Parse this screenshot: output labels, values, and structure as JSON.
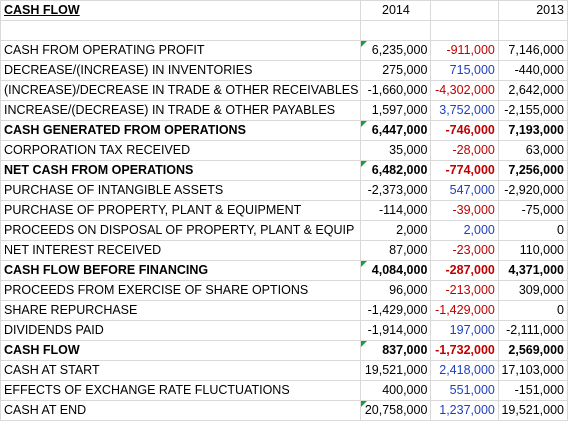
{
  "header": {
    "title": "CASH FLOW",
    "year_a": "2014",
    "year_b": "2013"
  },
  "rows": [
    {
      "label": "CASH FROM OPERATING PROFIT",
      "v2014": "6,235,000",
      "diff": "-911,000",
      "v2013": "7,146,000",
      "bold": false,
      "diff_type": "neg",
      "flag": true
    },
    {
      "label": "DECREASE/(INCREASE) IN INVENTORIES",
      "v2014": "275,000",
      "diff": "715,000",
      "v2013": "-440,000",
      "bold": false,
      "diff_type": "pos",
      "flag": false
    },
    {
      "label": "(INCREASE)/DECREASE IN TRADE & OTHER RECEIVABLES",
      "v2014": "-1,660,000",
      "diff": "-4,302,000",
      "v2013": "2,642,000",
      "bold": false,
      "diff_type": "neg",
      "flag": false
    },
    {
      "label": "INCREASE/(DECREASE) IN TRADE & OTHER PAYABLES",
      "v2014": "1,597,000",
      "diff": "3,752,000",
      "v2013": "-2,155,000",
      "bold": false,
      "diff_type": "pos",
      "flag": false
    },
    {
      "label": "CASH GENERATED FROM OPERATIONS",
      "v2014": "6,447,000",
      "diff": "-746,000",
      "v2013": "7,193,000",
      "bold": true,
      "diff_type": "neg",
      "flag": true
    },
    {
      "label": "CORPORATION TAX RECEIVED",
      "v2014": "35,000",
      "diff": "-28,000",
      "v2013": "63,000",
      "bold": false,
      "diff_type": "neg",
      "flag": false
    },
    {
      "label": "NET CASH FROM OPERATIONS",
      "v2014": "6,482,000",
      "diff": "-774,000",
      "v2013": "7,256,000",
      "bold": true,
      "diff_type": "neg",
      "flag": true
    },
    {
      "label": "PURCHASE OF INTANGIBLE ASSETS",
      "v2014": "-2,373,000",
      "diff": "547,000",
      "v2013": "-2,920,000",
      "bold": false,
      "diff_type": "pos",
      "flag": false
    },
    {
      "label": "PURCHASE OF PROPERTY, PLANT & EQUIPMENT",
      "v2014": "-114,000",
      "diff": "-39,000",
      "v2013": "-75,000",
      "bold": false,
      "diff_type": "neg",
      "flag": false
    },
    {
      "label": "PROCEEDS ON DISPOSAL OF PROPERTY, PLANT & EQUIP",
      "v2014": "2,000",
      "diff": "2,000",
      "v2013": "0",
      "bold": false,
      "diff_type": "pos",
      "flag": false
    },
    {
      "label": "NET INTEREST RECEIVED",
      "v2014": "87,000",
      "diff": "-23,000",
      "v2013": "110,000",
      "bold": false,
      "diff_type": "neg",
      "flag": false
    },
    {
      "label": "CASH FLOW BEFORE FINANCING",
      "v2014": "4,084,000",
      "diff": "-287,000",
      "v2013": "4,371,000",
      "bold": true,
      "diff_type": "neg",
      "flag": true
    },
    {
      "label": "PROCEEDS FROM EXERCISE OF SHARE OPTIONS",
      "v2014": "96,000",
      "diff": "-213,000",
      "v2013": "309,000",
      "bold": false,
      "diff_type": "neg",
      "flag": false
    },
    {
      "label": "SHARE REPURCHASE",
      "v2014": "-1,429,000",
      "diff": "-1,429,000",
      "v2013": "0",
      "bold": false,
      "diff_type": "neg",
      "flag": false
    },
    {
      "label": "DIVIDENDS PAID",
      "v2014": "-1,914,000",
      "diff": "197,000",
      "v2013": "-2,111,000",
      "bold": false,
      "diff_type": "pos",
      "flag": false
    },
    {
      "label": "CASH FLOW",
      "v2014": "837,000",
      "diff": "-1,732,000",
      "v2013": "2,569,000",
      "bold": true,
      "diff_type": "neg",
      "flag": true
    },
    {
      "label": "CASH AT START",
      "v2014": "19,521,000",
      "diff": "2,418,000",
      "v2013": "17,103,000",
      "bold": false,
      "diff_type": "pos",
      "flag": false
    },
    {
      "label": "EFFECTS OF EXCHANGE RATE FLUCTUATIONS",
      "v2014": "400,000",
      "diff": "551,000",
      "v2013": "-151,000",
      "bold": false,
      "diff_type": "pos",
      "flag": false
    },
    {
      "label": "CASH AT END",
      "v2014": "20,758,000",
      "diff": "1,237,000",
      "v2013": "19,521,000",
      "bold": false,
      "diff_type": "pos",
      "flag": true
    }
  ]
}
